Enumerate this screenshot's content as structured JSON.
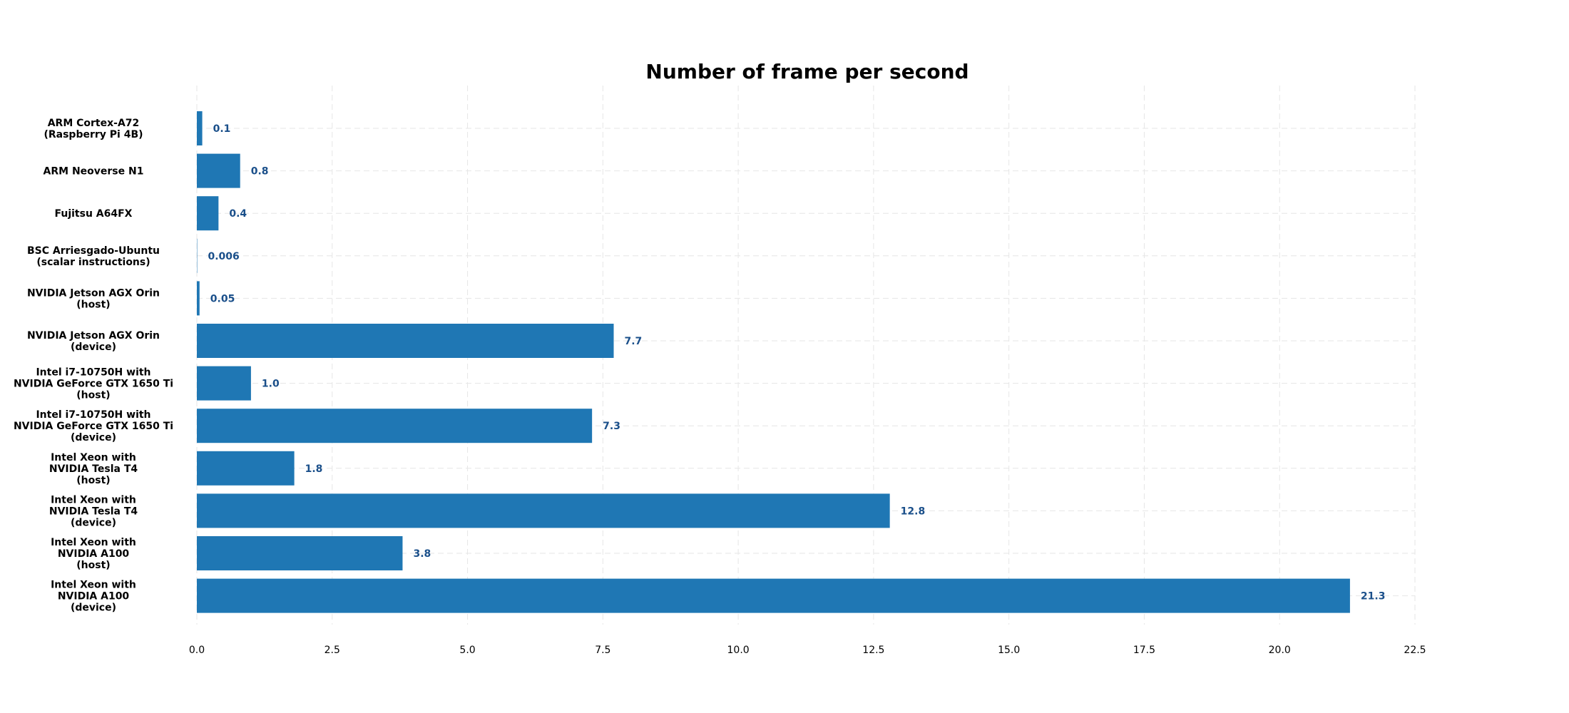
{
  "chart_data": {
    "type": "bar",
    "orientation": "horizontal",
    "title": "Number of frame per second",
    "xlabel": "",
    "ylabel": "",
    "categories": [
      [
        "ARM Cortex-A72",
        "(Raspberry Pi 4B)"
      ],
      [
        "ARM Neoverse N1"
      ],
      [
        "Fujitsu A64FX"
      ],
      [
        "BSC Arriesgado-Ubuntu",
        "(scalar instructions)"
      ],
      [
        "NVIDIA Jetson AGX Orin",
        "(host)"
      ],
      [
        "NVIDIA Jetson AGX Orin",
        "(device)"
      ],
      [
        "Intel i7-10750H with",
        "NVIDIA GeForce GTX 1650 Ti",
        "(host)"
      ],
      [
        "Intel i7-10750H with",
        "NVIDIA GeForce GTX 1650 Ti",
        "(device)"
      ],
      [
        "Intel Xeon with",
        "NVIDIA Tesla T4",
        "(host)"
      ],
      [
        "Intel Xeon with",
        "NVIDIA Tesla T4",
        "(device)"
      ],
      [
        "Intel Xeon with",
        "NVIDIA A100",
        "(host)"
      ],
      [
        "Intel Xeon with",
        "NVIDIA A100",
        "(device)"
      ]
    ],
    "values": [
      0.1,
      0.8,
      0.4,
      0.006,
      0.05,
      7.7,
      1.0,
      7.3,
      1.8,
      12.8,
      3.8,
      21.3
    ],
    "value_labels": [
      "0.1",
      "0.8",
      "0.4",
      "0.006",
      "0.05",
      "7.7",
      "1.0",
      "7.3",
      "1.8",
      "12.8",
      "3.8",
      "21.3"
    ],
    "xlim": [
      0,
      22.5
    ],
    "xticks": [
      "0.0",
      "2.5",
      "5.0",
      "7.5",
      "10.0",
      "12.5",
      "15.0",
      "17.5",
      "20.0",
      "22.5"
    ],
    "grid": true,
    "grid_style": "dashed",
    "legend": "none",
    "colors": {
      "bar": "#1f77b4",
      "value_label": "#1a4f8a",
      "grid": "#e6e6e6"
    }
  }
}
